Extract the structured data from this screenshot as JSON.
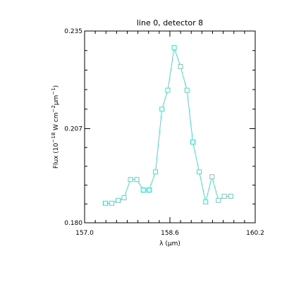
{
  "chart_data": {
    "type": "line",
    "title": "line 0, detector 8",
    "xlabel": "λ (μm)",
    "ylabel": {
      "prefix": "Flux (10",
      "exp1": "−18",
      "mid1": " W cm",
      "exp2": "−2",
      "mid2": "μm",
      "exp3": "−1",
      "suffix": ")"
    },
    "xlim": [
      157.0,
      160.2
    ],
    "ylim": [
      0.18,
      0.235
    ],
    "x_ticks": [
      "157.0",
      "158.6",
      "160.2"
    ],
    "y_ticks": [
      "0.180",
      "0.207",
      "0.235"
    ],
    "grid": false,
    "marker": "square",
    "series": [
      {
        "x": [
          157.39,
          157.51,
          157.63,
          157.74,
          157.86,
          157.98,
          158.1,
          158.21,
          158.33,
          158.45,
          158.56,
          158.68,
          158.8,
          158.92,
          159.03,
          159.15,
          159.27,
          159.39,
          159.51,
          159.62,
          159.74
        ],
        "y": [
          0.1856,
          0.1856,
          0.1864,
          0.1872,
          0.1924,
          0.1924,
          0.1894,
          0.1894,
          0.1946,
          0.2126,
          0.218,
          0.2302,
          0.2248,
          0.218,
          0.2032,
          0.1946,
          0.186,
          0.1932,
          0.1864,
          0.1876,
          0.1876
        ]
      }
    ],
    "colors": {
      "series": "#40e0c8",
      "axes": "#000000",
      "background": "#ffffff"
    }
  }
}
